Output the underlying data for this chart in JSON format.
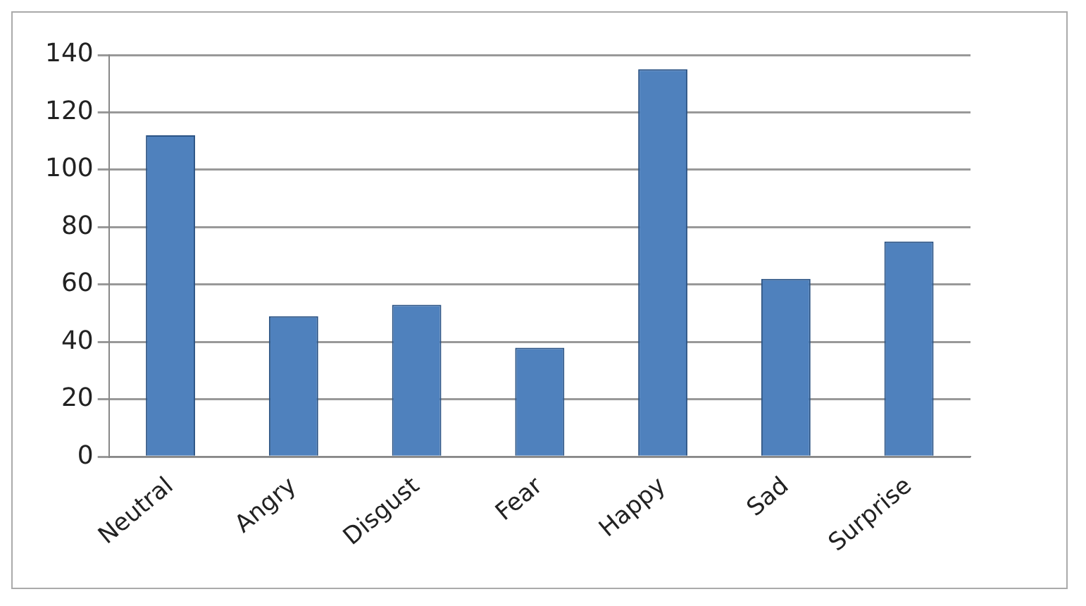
{
  "chart_data": {
    "type": "bar",
    "categories": [
      "Neutral",
      "Angry",
      "Disgust",
      "Fear",
      "Happy",
      "Sad",
      "Surprise"
    ],
    "values": [
      112,
      49,
      53,
      38,
      135,
      62,
      75
    ],
    "color": "#4f81bd",
    "ylim": [
      0,
      140
    ],
    "yticks": [
      0,
      20,
      40,
      60,
      80,
      100,
      120,
      140
    ],
    "grid": "y"
  }
}
